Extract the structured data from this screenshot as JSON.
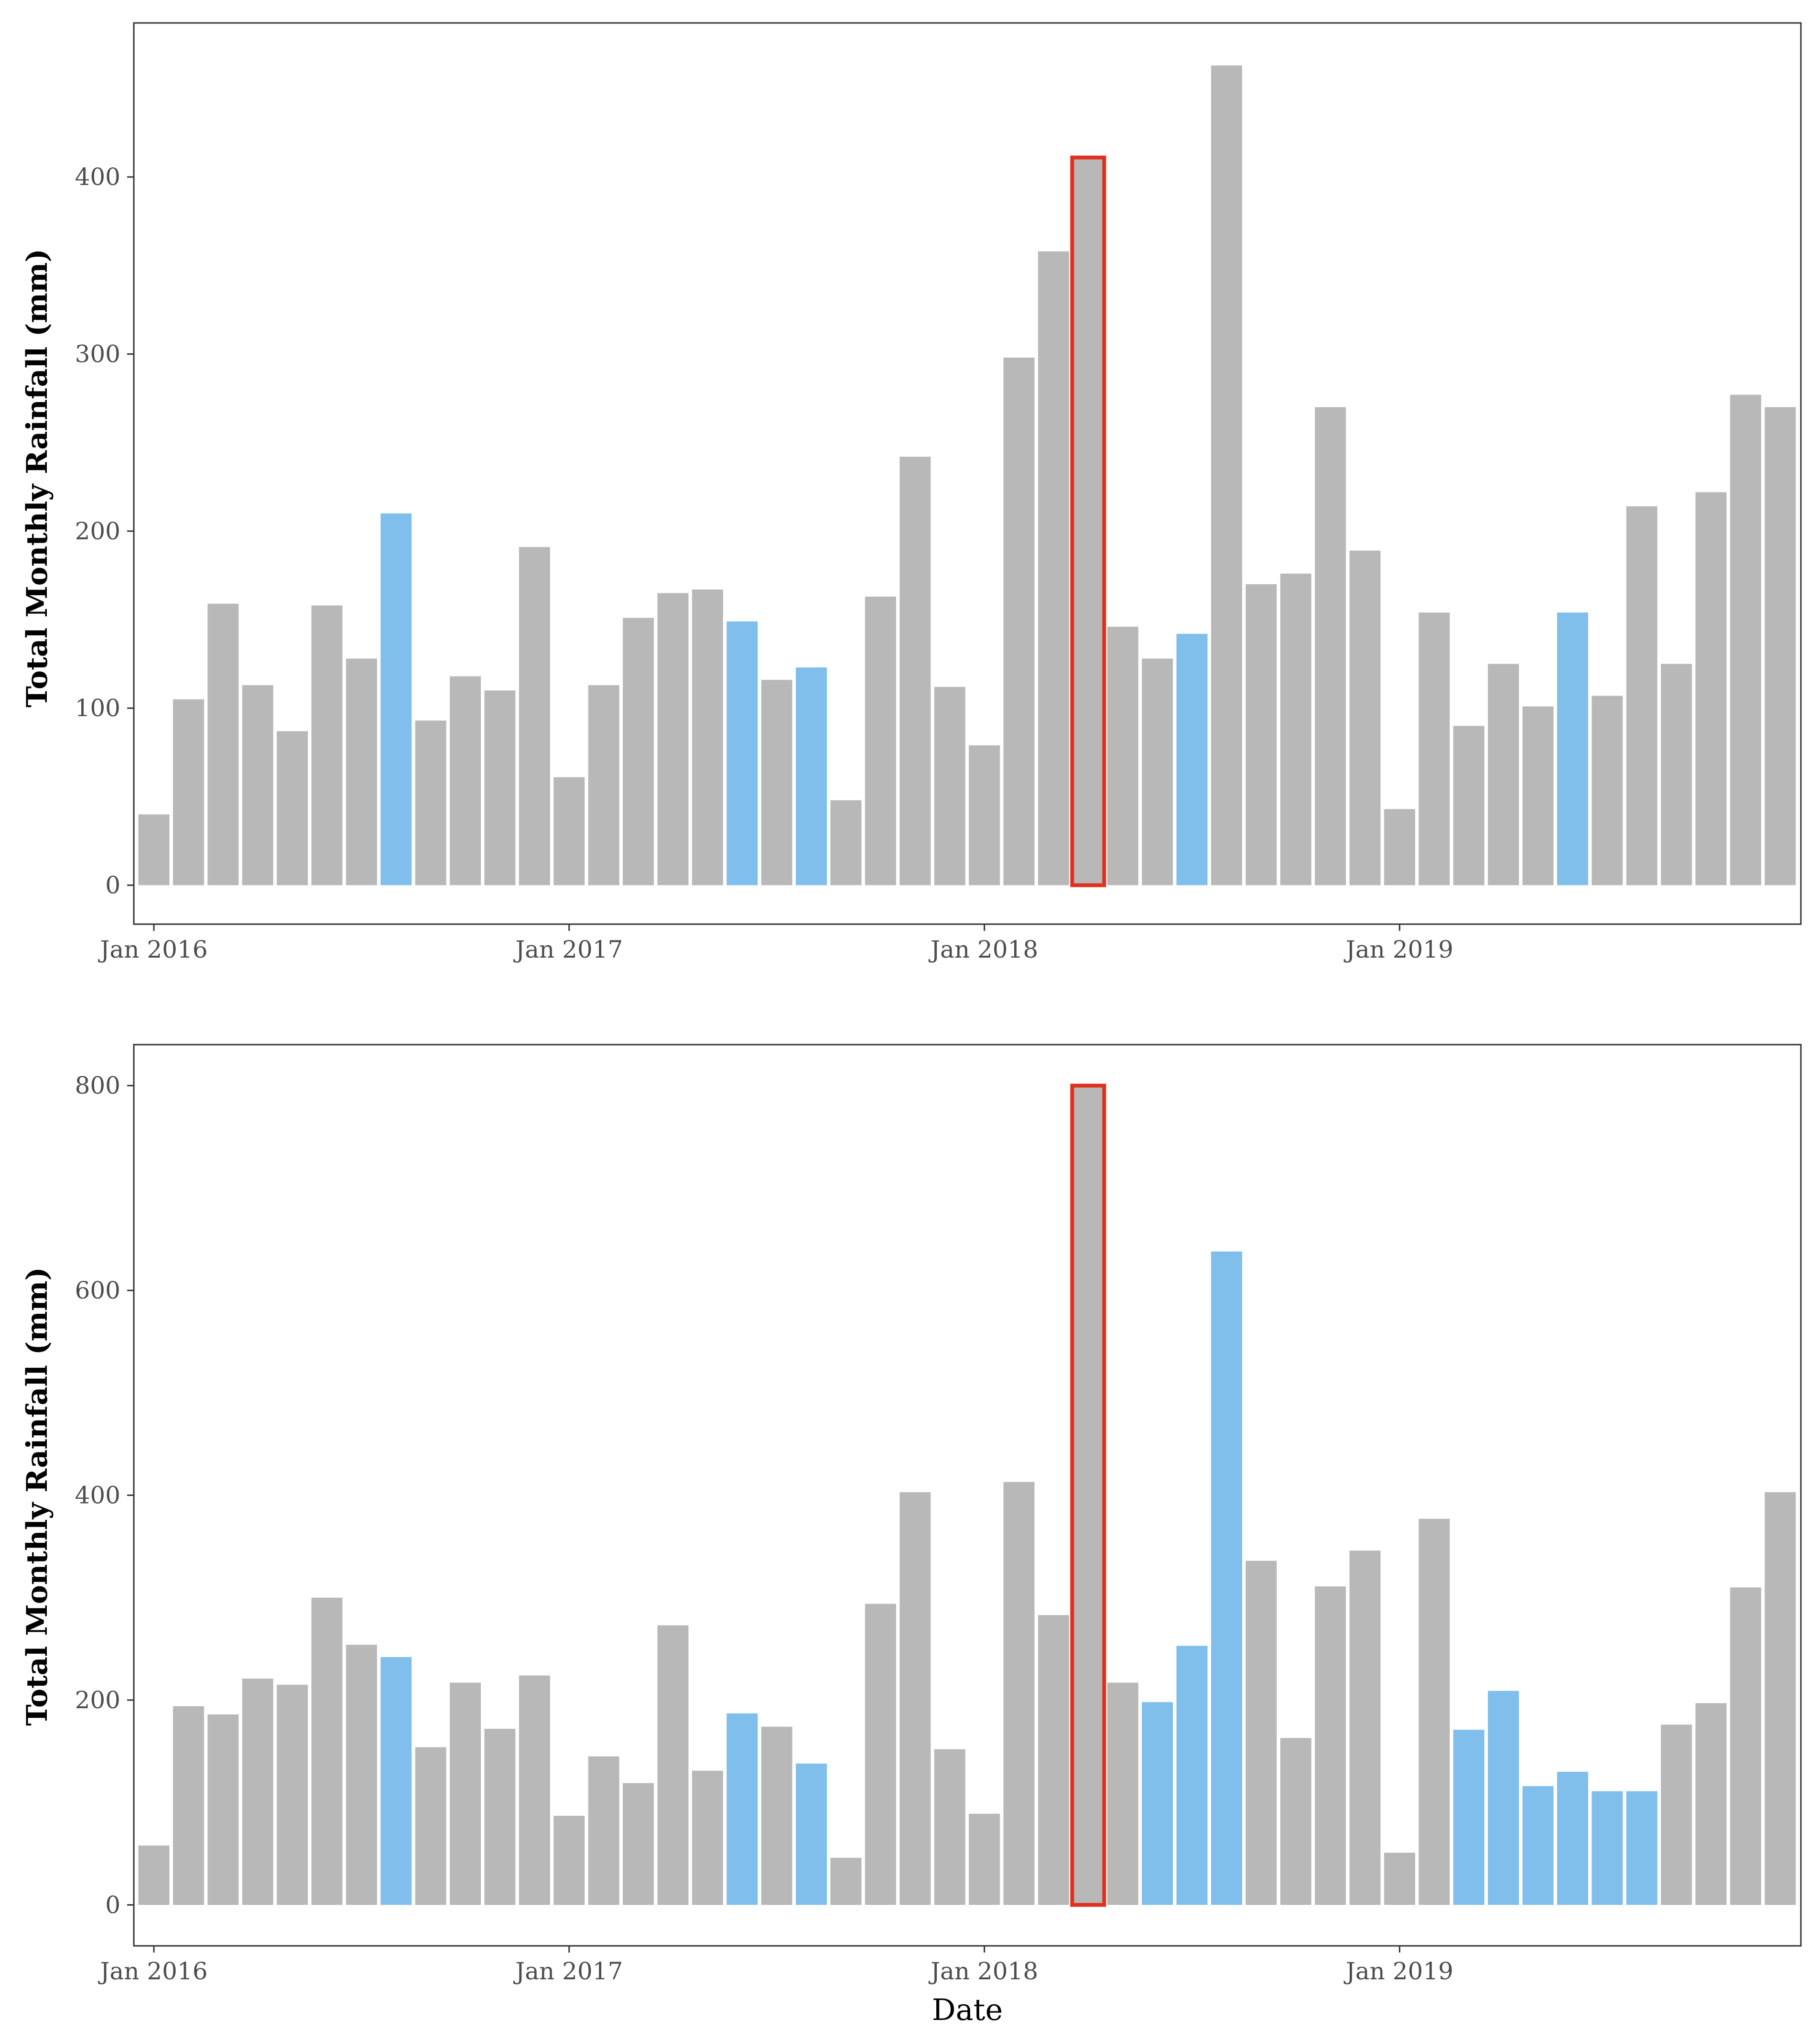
{
  "colors": {
    "default_bar": "#b8b8b8",
    "highlight_bar": "#80bfeb",
    "outline": "#e0301e",
    "axis": "#333333",
    "panel_border": "#333333"
  },
  "chart_data": [
    {
      "type": "bar",
      "title": "",
      "xlabel": "",
      "ylabel": "Total Monthly Rainfall (mm)",
      "ylim": [
        -22,
        487
      ],
      "yticks": [
        0,
        100,
        200,
        300,
        400
      ],
      "x_start": "2016-01",
      "x_ticks": [
        {
          "label": "Jan 2016",
          "index": 0
        },
        {
          "label": "Jan 2017",
          "index": 12
        },
        {
          "label": "Jan 2018",
          "index": 24
        },
        {
          "label": "Jan 2019",
          "index": 36
        }
      ],
      "values": [
        40,
        105,
        159,
        113,
        87,
        158,
        128,
        210,
        93,
        118,
        110,
        191,
        61,
        113,
        151,
        165,
        167,
        149,
        116,
        123,
        48,
        163,
        242,
        112,
        79,
        298,
        358,
        411,
        146,
        128,
        142,
        463,
        170,
        176,
        270,
        189,
        43,
        154,
        90,
        125,
        101,
        154,
        107,
        214,
        125,
        222,
        277,
        270
      ],
      "highlighted_indices": [
        7,
        17,
        19,
        30,
        41
      ],
      "outlined_index": 27,
      "grid": false
    },
    {
      "type": "bar",
      "title": "",
      "xlabel": "Date",
      "ylabel": "Total Monthly Rainfall (mm)",
      "ylim": [
        -40,
        840
      ],
      "yticks": [
        0,
        200,
        400,
        600,
        800
      ],
      "x_start": "2016-01",
      "x_ticks": [
        {
          "label": "Jan 2016",
          "index": 0
        },
        {
          "label": "Jan 2017",
          "index": 12
        },
        {
          "label": "Jan 2018",
          "index": 24
        },
        {
          "label": "Jan 2019",
          "index": 36
        }
      ],
      "values": [
        58,
        194,
        186,
        221,
        215,
        300,
        254,
        242,
        154,
        217,
        172,
        224,
        87,
        145,
        119,
        273,
        131,
        187,
        174,
        138,
        46,
        294,
        403,
        152,
        89,
        413,
        283,
        800,
        217,
        198,
        253,
        638,
        336,
        163,
        311,
        346,
        51,
        377,
        171,
        209,
        116,
        130,
        111,
        111,
        176,
        197,
        310,
        403
      ],
      "highlighted_indices": [
        7,
        17,
        19,
        29,
        30,
        31,
        38,
        39,
        40,
        41,
        42,
        43
      ],
      "outlined_index": 27,
      "grid": false
    }
  ]
}
